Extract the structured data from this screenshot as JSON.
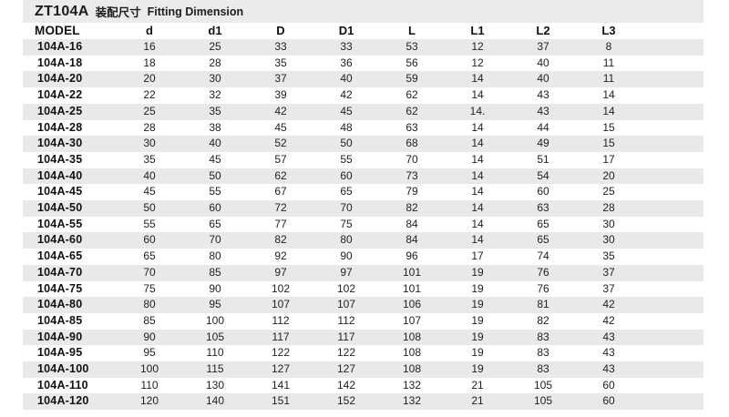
{
  "title": {
    "series": "ZT104A",
    "chinese": "装配尺寸",
    "english": "Fitting Dimension"
  },
  "table": {
    "headers": [
      "MODEL",
      "d",
      "d1",
      "D",
      "D1",
      "L",
      "L1",
      "L2",
      "L3"
    ],
    "rows": [
      {
        "model": "104A-16",
        "values": [
          "16",
          "25",
          "33",
          "33",
          "53",
          "12",
          "37",
          "8"
        ]
      },
      {
        "model": "104A-18",
        "values": [
          "18",
          "28",
          "35",
          "36",
          "56",
          "12",
          "40",
          "11"
        ]
      },
      {
        "model": "104A-20",
        "values": [
          "20",
          "30",
          "37",
          "40",
          "59",
          "14",
          "40",
          "11"
        ]
      },
      {
        "model": "104A-22",
        "values": [
          "22",
          "32",
          "39",
          "42",
          "62",
          "14",
          "43",
          "14"
        ]
      },
      {
        "model": "104A-25",
        "values": [
          "25",
          "35",
          "42",
          "45",
          "62",
          "14.",
          "43",
          "14"
        ]
      },
      {
        "model": "104A-28",
        "values": [
          "28",
          "38",
          "45",
          "48",
          "63",
          "14",
          "44",
          "15"
        ]
      },
      {
        "model": "104A-30",
        "values": [
          "30",
          "40",
          "52",
          "50",
          "68",
          "14",
          "49",
          "15"
        ]
      },
      {
        "model": "104A-35",
        "values": [
          "35",
          "45",
          "57",
          "55",
          "70",
          "14",
          "51",
          "17"
        ]
      },
      {
        "model": "104A-40",
        "values": [
          "40",
          "50",
          "62",
          "60",
          "73",
          "14",
          "54",
          "20"
        ]
      },
      {
        "model": "104A-45",
        "values": [
          "45",
          "55",
          "67",
          "65",
          "79",
          "14",
          "60",
          "25"
        ]
      },
      {
        "model": "104A-50",
        "values": [
          "50",
          "60",
          "72",
          "70",
          "82",
          "14",
          "63",
          "28"
        ]
      },
      {
        "model": "104A-55",
        "values": [
          "55",
          "65",
          "77",
          "75",
          "84",
          "14",
          "65",
          "30"
        ]
      },
      {
        "model": "104A-60",
        "values": [
          "60",
          "70",
          "82",
          "80",
          "84",
          "14",
          "65",
          "30"
        ]
      },
      {
        "model": "104A-65",
        "values": [
          "65",
          "80",
          "92",
          "90",
          "96",
          "17",
          "74",
          "35"
        ]
      },
      {
        "model": "104A-70",
        "values": [
          "70",
          "85",
          "97",
          "97",
          "101",
          "19",
          "76",
          "37"
        ]
      },
      {
        "model": "104A-75",
        "values": [
          "75",
          "90",
          "102",
          "102",
          "101",
          "19",
          "76",
          "37"
        ]
      },
      {
        "model": "104A-80",
        "values": [
          "80",
          "95",
          "107",
          "107",
          "106",
          "19",
          "81",
          "42"
        ]
      },
      {
        "model": "104A-85",
        "values": [
          "85",
          "100",
          "112",
          "112",
          "107",
          "19",
          "82",
          "42"
        ]
      },
      {
        "model": "104A-90",
        "values": [
          "90",
          "105",
          "117",
          "117",
          "108",
          "19",
          "83",
          "43"
        ]
      },
      {
        "model": "104A-95",
        "values": [
          "95",
          "110",
          "122",
          "122",
          "108",
          "19",
          "83",
          "43"
        ]
      },
      {
        "model": "104A-100",
        "values": [
          "100",
          "115",
          "127",
          "127",
          "108",
          "19",
          "83",
          "43"
        ]
      },
      {
        "model": "104A-110",
        "values": [
          "110",
          "130",
          "141",
          "142",
          "132",
          "21",
          "105",
          "60"
        ]
      },
      {
        "model": "104A-120",
        "values": [
          "120",
          "140",
          "151",
          "152",
          "132",
          "21",
          "105",
          "60"
        ]
      }
    ]
  },
  "colors": {
    "stripe": "#e9e9e9",
    "band": "#ebebeb",
    "text": "#1c1c1c"
  }
}
